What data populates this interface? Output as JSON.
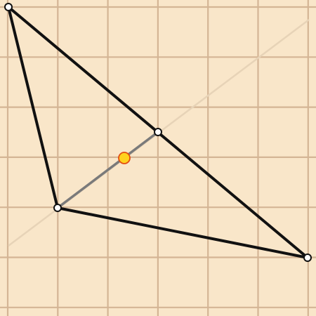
{
  "puzzle": {
    "grid": {
      "cells_x": 6,
      "cells_y": 6,
      "line_color": "#d4b595",
      "background_color": "#f9e6c9"
    },
    "guide_line": {
      "from": [
        0,
        1
      ],
      "to": [
        6,
        5.8
      ],
      "color": "#e7d3b7"
    },
    "triangle": {
      "vertices": [
        [
          0,
          6
        ],
        [
          1,
          2
        ],
        [
          6,
          1
        ]
      ],
      "stroke_color": "#111111"
    },
    "segment": {
      "from": [
        1,
        2
      ],
      "to": [
        3,
        3.5
      ],
      "stroke_color": "#7a7a7a"
    },
    "midpoint": {
      "at": [
        2.33,
        3
      ],
      "fill_color": "#ffd21f",
      "stroke_color": "#e34d12"
    },
    "handle_color": "#ffffff"
  }
}
